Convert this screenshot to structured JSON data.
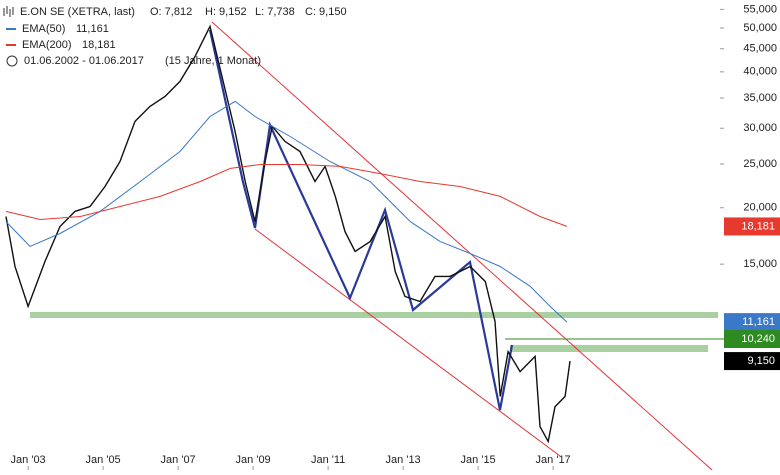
{
  "header": {
    "instrument": "E.ON SE (XETRA, last)",
    "quote": [
      "O: 7,812",
      "H: 9,152",
      "L: 7,738",
      "C: 9,150"
    ],
    "range": "01.06.2002 - 01.06.2017",
    "span": "(15 Jahre, 1 Monat)"
  },
  "chart_data": {
    "type": "line",
    "log_scale": true,
    "grid": false,
    "xlim": [
      2002.25,
      2021.45
    ],
    "ylim": [
      5250,
      57700
    ],
    "xticks": [
      {
        "value": 2003,
        "label": "Jan '03"
      },
      {
        "value": 2005,
        "label": "Jan '05"
      },
      {
        "value": 2007,
        "label": "Jan '07"
      },
      {
        "value": 2009,
        "label": "Jan '09"
      },
      {
        "value": 2011,
        "label": "Jan '11"
      },
      {
        "value": 2013,
        "label": "Jan '13"
      },
      {
        "value": 2015,
        "label": "Jan '15"
      },
      {
        "value": 2017,
        "label": "Jan '17"
      }
    ],
    "yticks": [
      {
        "value": 15000,
        "label": "15,000"
      },
      {
        "value": 20000,
        "label": "20,000"
      },
      {
        "value": 25000,
        "label": "25,000"
      },
      {
        "value": 30000,
        "label": "30,000"
      },
      {
        "value": 35000,
        "label": "35,000"
      },
      {
        "value": 40000,
        "label": "40,000"
      },
      {
        "value": 45000,
        "label": "45,000"
      },
      {
        "value": 50000,
        "label": "50,000"
      },
      {
        "value": 55000,
        "label": "55,000"
      }
    ],
    "series": [
      {
        "color": "#111111",
        "x": [
          2002.41,
          2002.65,
          2003.0,
          2003.45,
          2003.85,
          2004.25,
          2004.65,
          2005.05,
          2005.45,
          2005.85,
          2006.25,
          2006.65,
          2007.05,
          2007.45,
          2007.85,
          2008.17,
          2008.52,
          2008.79,
          2009.05,
          2009.32,
          2009.51,
          2009.85,
          2010.25,
          2010.65,
          2010.92,
          2011.19,
          2011.45,
          2011.72,
          2012.12,
          2012.52,
          2012.79,
          2013.05,
          2013.45,
          2013.85,
          2014.25,
          2014.79,
          2015.19,
          2015.45,
          2015.59,
          2015.8,
          2016.12,
          2016.52,
          2016.65,
          2016.87,
          2017.05,
          2017.32,
          2017.45
        ],
        "values": [
          19130,
          14820,
          12090,
          15210,
          18180,
          19630,
          20130,
          22290,
          25320,
          31070,
          33530,
          35280,
          38100,
          43260,
          50440,
          39070,
          29510,
          22860,
          18640,
          25320,
          30280,
          28050,
          26650,
          22860,
          24690,
          21190,
          17710,
          16000,
          16830,
          19130,
          14450,
          12720,
          12400,
          14090,
          14090,
          14820,
          13730,
          11200,
          7640,
          9600,
          8670,
          9370,
          6550,
          6070,
          7250,
          7640,
          9150
        ]
      },
      {
        "name": "EMA(50)",
        "legend_value": "11,161",
        "color": "#3a78c8",
        "x": [
          2002.41,
          2003.05,
          2003.85,
          2004.92,
          2005.99,
          2007.05,
          2007.85,
          2008.52,
          2009.05,
          2009.99,
          2011.05,
          2012.12,
          2013.19,
          2013.99,
          2014.79,
          2015.59,
          2016.39,
          2016.92,
          2017.37
        ],
        "values": [
          18640,
          16420,
          17540,
          19630,
          22860,
          26650,
          31850,
          34400,
          31850,
          28760,
          25320,
          22860,
          18640,
          16830,
          15840,
          14820,
          13390,
          12090,
          11161
        ]
      },
      {
        "name": "EMA(200)",
        "legend_value": "18,181",
        "color": "#e8392f",
        "x": [
          2002.41,
          2003.32,
          2004.39,
          2005.45,
          2006.52,
          2007.59,
          2008.39,
          2009.19,
          2010.25,
          2011.32,
          2012.39,
          2013.45,
          2014.52,
          2015.59,
          2016.65,
          2017.37
        ],
        "values": [
          19630,
          18840,
          19130,
          20130,
          21190,
          22860,
          24440,
          24940,
          24940,
          24690,
          23810,
          22860,
          22290,
          21190,
          19130,
          18181
        ]
      }
    ],
    "price_tags": [
      {
        "value": 18181,
        "label": "18,181",
        "color": "#e8392f"
      },
      {
        "value": 11161,
        "label": "11,161",
        "color": "#3a78c8"
      },
      {
        "value": 10240,
        "label": "10,240",
        "color": "#2e8b22"
      },
      {
        "value": 9150,
        "label": "9,150",
        "color": "#000000"
      }
    ]
  }
}
